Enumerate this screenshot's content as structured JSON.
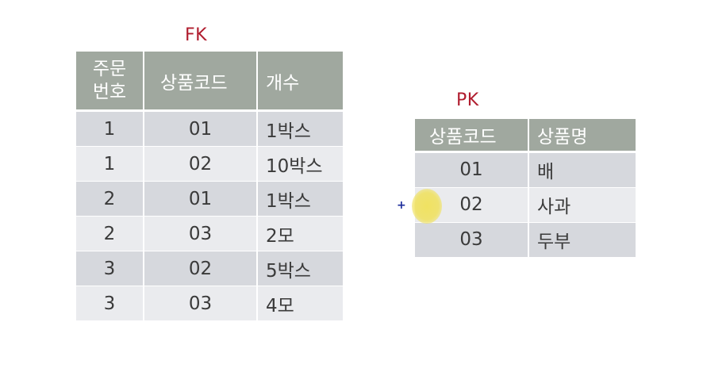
{
  "fk": {
    "label": "FK",
    "headers": [
      "주문\n번호",
      "상품코드",
      "개수"
    ],
    "rows": [
      [
        "1",
        "01",
        "1박스"
      ],
      [
        "1",
        "02",
        "10박스"
      ],
      [
        "2",
        "01",
        "1박스"
      ],
      [
        "2",
        "03",
        "2모"
      ],
      [
        "3",
        "02",
        "5박스"
      ],
      [
        "3",
        "03",
        "4모"
      ]
    ]
  },
  "pk": {
    "label": "PK",
    "headers": [
      "상품코드",
      "상품명"
    ],
    "rows": [
      [
        "01",
        "배"
      ],
      [
        "02",
        "사과"
      ],
      [
        "03",
        "두부"
      ]
    ]
  },
  "colors": {
    "label": "#b01c2e",
    "header_bg": "#a0a89f",
    "row_odd": "#d6d8dd",
    "row_even": "#eaebee",
    "cursor_highlight": "#f0e15a"
  },
  "cursor": {
    "icon": "crosshair-plus-icon",
    "glyph": "+"
  }
}
